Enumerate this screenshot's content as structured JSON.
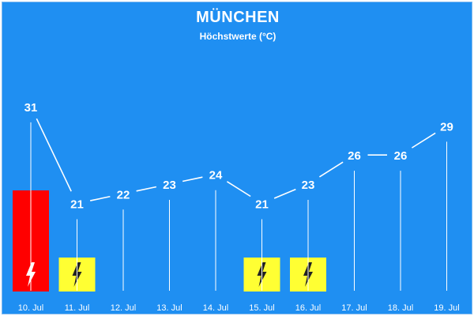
{
  "header": {
    "title": "MÜNCHEN",
    "subtitle": "Höchstwerte (°C)"
  },
  "chart_data": {
    "type": "line",
    "title": "MÜNCHEN",
    "subtitle": "Höchstwerte (°C)",
    "categories": [
      "10. Jul",
      "11. Jul",
      "12. Jul",
      "13. Jul",
      "14. Jul",
      "15. Jul",
      "16. Jul",
      "17. Jul",
      "18. Jul",
      "19. Jul"
    ],
    "values": [
      31,
      21,
      22,
      23,
      24,
      21,
      23,
      26,
      26,
      29
    ],
    "ylim": [
      12,
      34
    ],
    "grid": false,
    "thunderstorm_warnings": [
      {
        "day": "10. Jul",
        "level": "severe",
        "color": "#ff0000",
        "icon": "lightning-bolt-icon"
      },
      {
        "day": "11. Jul",
        "level": "warning",
        "color": "#ffff33",
        "icon": "lightning-bolt-icon"
      },
      {
        "day": "15. Jul",
        "level": "warning",
        "color": "#ffff33",
        "icon": "lightning-bolt-icon"
      },
      {
        "day": "16. Jul",
        "level": "warning",
        "color": "#ffff33",
        "icon": "lightning-bolt-icon"
      }
    ]
  },
  "colors": {
    "background": "#1f8ff2",
    "line": "#ffffff",
    "severe": "#ff0000",
    "warning": "#ffff33"
  }
}
